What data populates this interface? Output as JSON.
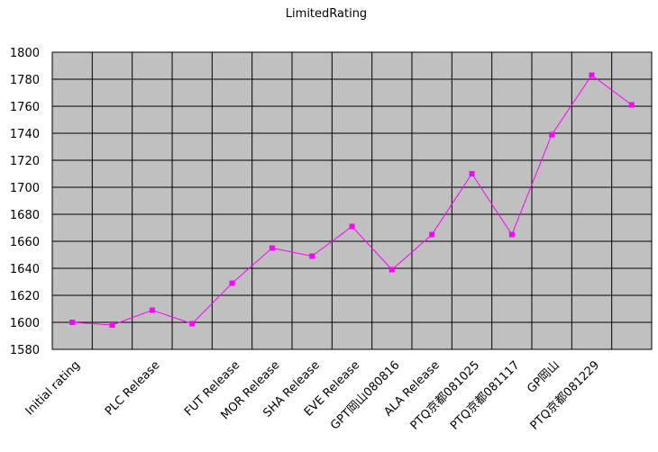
{
  "chart_data": {
    "type": "line",
    "title": "LimitedRating",
    "xlabel": "",
    "ylabel": "",
    "ylim": [
      1580,
      1800
    ],
    "yticks": [
      1580,
      1600,
      1620,
      1640,
      1660,
      1680,
      1700,
      1720,
      1740,
      1760,
      1780,
      1800
    ],
    "grid": true,
    "legend": "none",
    "colors": {
      "plot_bg": "#c0c0c0",
      "grid": "#000000",
      "series": "#ff00ff"
    },
    "categories": [
      "Initial rating",
      "",
      "PLC Release",
      "",
      "FUT Release",
      "MOR Release",
      "SHA Release",
      "EVE Release",
      "GPT岡山080816",
      "ALA Release",
      "PTQ京都081025",
      "PTQ京都081117",
      "GP岡山",
      "PTQ京都081229",
      ""
    ],
    "series": [
      {
        "values": [
          1600,
          1598,
          1609,
          1599,
          1629,
          1655,
          1649,
          1671,
          1639,
          1665,
          1710,
          1665,
          1739,
          1783,
          1761
        ]
      }
    ]
  }
}
